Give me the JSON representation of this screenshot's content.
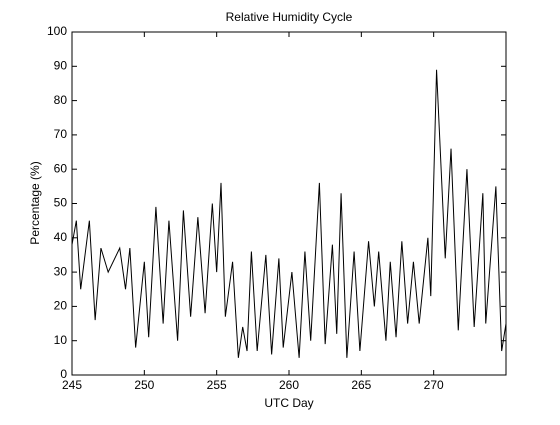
{
  "chart_data": {
    "type": "line",
    "title": "Relative Humidity Cycle",
    "xlabel": "UTC Day",
    "ylabel": "Percentage (%)",
    "series": [
      {
        "name": "Relative Humidity",
        "color": "#000000",
        "x": [
          245,
          245.3,
          245.6,
          246.2,
          246.6,
          247.0,
          247.5,
          248.3,
          248.7,
          249.0,
          249.4,
          250.0,
          250.3,
          250.8,
          251.3,
          251.7,
          252.3,
          252.7,
          253.2,
          253.7,
          254.2,
          254.7,
          255.0,
          255.3,
          255.6,
          256.1,
          256.5,
          256.8,
          257.1,
          257.4,
          257.8,
          258.4,
          258.8,
          259.3,
          259.6,
          260.2,
          260.7,
          261.1,
          261.5,
          262.1,
          262.5,
          263.0,
          263.3,
          263.6,
          264.0,
          264.5,
          264.9,
          265.5,
          265.9,
          266.2,
          266.7,
          267.0,
          267.4,
          267.8,
          268.2,
          268.6,
          269.0,
          269.6,
          269.8,
          270.2,
          270.8,
          271.2,
          271.7,
          272.3,
          272.8,
          273.4,
          273.6,
          274.3,
          274.7,
          275.0
        ],
        "values": [
          38,
          45,
          25,
          45,
          16,
          37,
          30,
          37,
          25,
          37,
          8,
          33,
          11,
          49,
          15,
          45,
          10,
          48,
          17,
          46,
          18,
          50,
          30,
          56,
          17,
          33,
          5,
          14,
          7,
          36,
          7,
          35,
          6,
          34,
          8,
          30,
          5,
          36,
          10,
          56,
          9,
          38,
          12,
          53,
          5,
          36,
          7,
          39,
          20,
          36,
          10,
          33,
          11,
          39,
          15,
          33,
          15,
          40,
          23,
          89,
          34,
          66,
          13,
          60,
          14,
          53,
          15,
          55,
          7,
          15
        ]
      }
    ],
    "xlim": [
      245,
      275
    ],
    "xticks": [
      245,
      250,
      255,
      260,
      265,
      270
    ],
    "ylim": [
      0,
      100
    ],
    "yticks": [
      0,
      10,
      20,
      30,
      40,
      50,
      60,
      70,
      80,
      90,
      100
    ]
  }
}
